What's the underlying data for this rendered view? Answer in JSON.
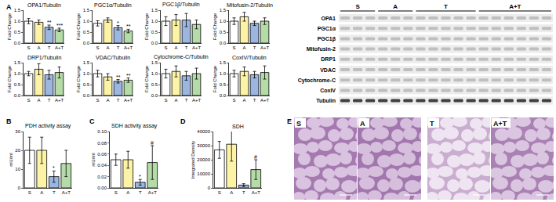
{
  "panels": [
    "A",
    "B",
    "C",
    "D",
    "E"
  ],
  "chart_data": [
    {
      "type": "bar",
      "title": "OPA1/Tubulin",
      "y_label": "Fold Change",
      "categories": [
        "S",
        "A",
        "T",
        "A+T"
      ],
      "values": [
        1.0,
        0.95,
        0.72,
        0.6
      ],
      "errors": [
        0.12,
        0.1,
        0.1,
        0.08
      ],
      "significance": [
        null,
        null,
        "**",
        "***"
      ],
      "colors": [
        "#ffffff",
        "#fdf3a7",
        "#9bb7e0",
        "#b5dca8"
      ],
      "ylim": [
        0,
        1.5
      ],
      "yticks": [
        {
          "value": 0,
          "label": "0.0"
        },
        {
          "value": 0.5,
          "label": "0.5"
        },
        {
          "value": 1,
          "label": "1.0"
        },
        {
          "value": 1.5,
          "label": "1.5"
        }
      ],
      "grid": false
    },
    {
      "type": "bar",
      "title": "PGC1α/Tubulin",
      "y_label": "Fold Change",
      "categories": [
        "S",
        "A",
        "T",
        "A+T"
      ],
      "values": [
        0.9,
        1.05,
        0.7,
        0.55
      ],
      "errors": [
        0.12,
        0.1,
        0.1,
        0.08
      ],
      "significance": [
        null,
        null,
        "*",
        "**"
      ],
      "colors": [
        "#ffffff",
        "#fdf3a7",
        "#9bb7e0",
        "#b5dca8"
      ],
      "ylim": [
        0,
        1.5
      ],
      "yticks": [
        {
          "value": 0,
          "label": "0.0"
        },
        {
          "value": 0.5,
          "label": "0.5"
        },
        {
          "value": 1,
          "label": "1.0"
        },
        {
          "value": 1.5,
          "label": "1.5"
        }
      ],
      "grid": false
    },
    {
      "type": "bar",
      "title": "PGC1β/Tubulin",
      "y_label": "Fold Change",
      "categories": [
        "S",
        "A",
        "T",
        "A+T"
      ],
      "values": [
        1.0,
        1.05,
        1.05,
        0.85
      ],
      "errors": [
        0.2,
        0.25,
        0.3,
        0.2
      ],
      "significance": [
        null,
        null,
        null,
        null
      ],
      "colors": [
        "#ffffff",
        "#fdf3a7",
        "#9bb7e0",
        "#b5dca8"
      ],
      "ylim": [
        0,
        1.5
      ],
      "yticks": [
        {
          "value": 0,
          "label": "0.0"
        },
        {
          "value": 0.5,
          "label": "0.5"
        },
        {
          "value": 1,
          "label": "1.0"
        },
        {
          "value": 1.5,
          "label": "1.5"
        }
      ],
      "grid": false
    },
    {
      "type": "bar",
      "title": "Mitofusin-2/Tubulin",
      "y_label": "Fold Change",
      "categories": [
        "S",
        "A",
        "T",
        "A+T"
      ],
      "values": [
        1.0,
        1.2,
        0.9,
        1.0
      ],
      "errors": [
        0.15,
        0.2,
        0.1,
        0.15
      ],
      "significance": [
        null,
        null,
        null,
        null
      ],
      "colors": [
        "#ffffff",
        "#fdf3a7",
        "#9bb7e0",
        "#b5dca8"
      ],
      "ylim": [
        0,
        1.5
      ],
      "yticks": [
        {
          "value": 0,
          "label": "0.0"
        },
        {
          "value": 0.5,
          "label": "0.5"
        },
        {
          "value": 1,
          "label": "1.0"
        },
        {
          "value": 1.5,
          "label": "1.5"
        }
      ],
      "grid": false
    },
    {
      "type": "bar",
      "title": "DRP1/Tubulin",
      "y_label": "Fold Change",
      "categories": [
        "S",
        "A",
        "T",
        "A+T"
      ],
      "values": [
        1.0,
        1.2,
        0.95,
        1.05
      ],
      "errors": [
        0.1,
        0.25,
        0.2,
        0.25
      ],
      "significance": [
        null,
        null,
        null,
        null
      ],
      "colors": [
        "#ffffff",
        "#fdf3a7",
        "#9bb7e0",
        "#b5dca8"
      ],
      "ylim": [
        0,
        1.5
      ],
      "yticks": [
        {
          "value": 0,
          "label": "0.0"
        },
        {
          "value": 0.5,
          "label": "0.5"
        },
        {
          "value": 1,
          "label": "1.0"
        },
        {
          "value": 1.5,
          "label": "1.5"
        }
      ],
      "grid": false
    },
    {
      "type": "bar",
      "title": "VDAC/Tubulin",
      "y_label": "Fold Change",
      "categories": [
        "S",
        "A",
        "T",
        "A+T"
      ],
      "values": [
        1.0,
        0.85,
        0.65,
        0.7
      ],
      "errors": [
        0.15,
        0.15,
        0.08,
        0.1
      ],
      "significance": [
        null,
        null,
        "**",
        "**"
      ],
      "colors": [
        "#ffffff",
        "#fdf3a7",
        "#9bb7e0",
        "#b5dca8"
      ],
      "ylim": [
        0,
        1.5
      ],
      "yticks": [
        {
          "value": 0,
          "label": "0.0"
        },
        {
          "value": 0.5,
          "label": "0.5"
        },
        {
          "value": 1,
          "label": "1.0"
        },
        {
          "value": 1.5,
          "label": "1.5"
        }
      ],
      "grid": false
    },
    {
      "type": "bar",
      "title": "Cytochrome-C/Tubulin",
      "y_label": "Fold Change",
      "categories": [
        "S",
        "A",
        "T",
        "A+T"
      ],
      "values": [
        1.0,
        1.1,
        0.9,
        1.0
      ],
      "errors": [
        0.2,
        0.25,
        0.2,
        0.25
      ],
      "significance": [
        null,
        null,
        null,
        null
      ],
      "colors": [
        "#ffffff",
        "#fdf3a7",
        "#9bb7e0",
        "#b5dca8"
      ],
      "ylim": [
        0,
        1.5
      ],
      "yticks": [
        {
          "value": 0,
          "label": "0.0"
        },
        {
          "value": 0.5,
          "label": "0.5"
        },
        {
          "value": 1,
          "label": "1.0"
        },
        {
          "value": 1.5,
          "label": "1.5"
        }
      ],
      "grid": false
    },
    {
      "type": "bar",
      "title": "CoxIV/Tubulin",
      "y_label": "Fold Change",
      "categories": [
        "S",
        "A",
        "T",
        "A+T"
      ],
      "values": [
        1.0,
        1.1,
        0.95,
        1.05
      ],
      "errors": [
        0.15,
        0.2,
        0.15,
        0.3
      ],
      "significance": [
        null,
        null,
        null,
        null
      ],
      "colors": [
        "#ffffff",
        "#fdf3a7",
        "#9bb7e0",
        "#b5dca8"
      ],
      "ylim": [
        0,
        1.5
      ],
      "yticks": [
        {
          "value": 0,
          "label": "0.0"
        },
        {
          "value": 0.5,
          "label": "0.5"
        },
        {
          "value": 1,
          "label": "1.0"
        },
        {
          "value": 1.5,
          "label": "1.5"
        }
      ],
      "grid": false
    },
    {
      "type": "bar",
      "title": "PDH activity assay",
      "y_label": "mU/ml",
      "categories": [
        "S",
        "A",
        "T",
        "A+T"
      ],
      "values": [
        20,
        20,
        6,
        13
      ],
      "errors": [
        7,
        7,
        3,
        7
      ],
      "significance": [
        null,
        null,
        "*",
        null
      ],
      "colors": [
        "#ffffff",
        "#fdf3a7",
        "#9bb7e0",
        "#b5dca8"
      ],
      "ylim": [
        0,
        30
      ],
      "yticks": [
        0,
        10,
        20,
        30
      ],
      "grid": false
    },
    {
      "type": "bar",
      "title": "SDH activity assay",
      "y_label": "mU/ml",
      "categories": [
        "S",
        "A",
        "T",
        "A+T"
      ],
      "values": [
        0.05,
        0.05,
        0.01,
        0.045
      ],
      "errors": [
        0.01,
        0.015,
        0.005,
        0.03
      ],
      "significance": [
        null,
        null,
        "*",
        "#"
      ],
      "colors": [
        "#ffffff",
        "#fdf3a7",
        "#9bb7e0",
        "#b5dca8"
      ],
      "ylim": [
        0,
        0.1
      ],
      "yticks": [
        {
          "value": 0,
          "label": "0.00"
        },
        {
          "value": 0.02,
          "label": "0.02"
        },
        {
          "value": 0.04,
          "label": "0.04"
        },
        {
          "value": 0.06,
          "label": "0.06"
        },
        {
          "value": 0.08,
          "label": "0.08"
        },
        {
          "value": 0.1,
          "label": "0.10"
        }
      ],
      "grid": false
    },
    {
      "type": "bar",
      "title": "SDH",
      "y_label": "Integrated Density",
      "categories": [
        "S",
        "A",
        "T",
        "A+T"
      ],
      "values": [
        27000,
        31000,
        2000,
        13000
      ],
      "errors": [
        6000,
        12000,
        1000,
        7000
      ],
      "significance": [
        null,
        null,
        null,
        "#"
      ],
      "colors": [
        "#ffffff",
        "#fdf3a7",
        "#9bb7e0",
        "#b5dca8"
      ],
      "ylim": [
        0,
        40000
      ],
      "yticks": [
        0,
        10000,
        20000,
        30000,
        40000
      ],
      "grid": false
    }
  ],
  "blot": {
    "groups": [
      "S",
      "A",
      "T",
      "A+T"
    ],
    "lanes": [
      3,
      3,
      5,
      6
    ],
    "proteins": [
      "OPA1",
      "PGC1α",
      "PGC1β",
      "Mitofusin-2",
      "DRP1",
      "VDAC",
      "Cytochrome-C",
      "CoxIV",
      "Tubulin"
    ]
  },
  "histology": {
    "labels": [
      "S",
      "A",
      "T",
      "A+T"
    ]
  }
}
